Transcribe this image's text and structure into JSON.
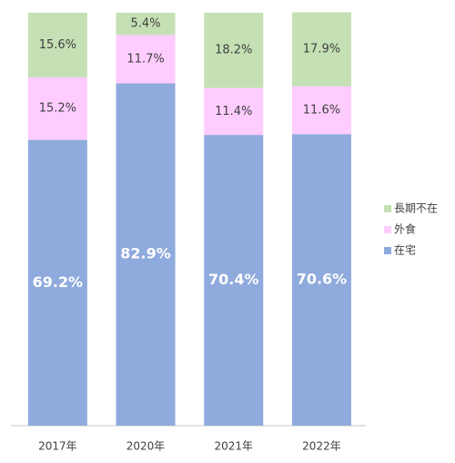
{
  "chart_data": {
    "type": "stacked-bar",
    "categories": [
      "2017年",
      "2020年",
      "2021年",
      "2022年"
    ],
    "series": [
      {
        "name": "在宅",
        "color": "#8faadc",
        "values": [
          69.2,
          82.9,
          70.4,
          70.6
        ],
        "value_labels": [
          "69.2%",
          "82.9%",
          "70.4%",
          "70.6%"
        ]
      },
      {
        "name": "外食",
        "color": "#ffccff",
        "values": [
          15.2,
          11.7,
          11.4,
          11.6
        ],
        "value_labels": [
          "15.2%",
          "11.7%",
          "11.4%",
          "11.6%"
        ]
      },
      {
        "name": "長期不在",
        "color": "#c5e0b4",
        "values": [
          15.6,
          5.4,
          18.2,
          17.9
        ],
        "value_labels": [
          "15.6%",
          "5.4%",
          "18.2%",
          "17.9%"
        ]
      }
    ],
    "ylim": [
      0,
      100
    ],
    "legend": "right"
  }
}
